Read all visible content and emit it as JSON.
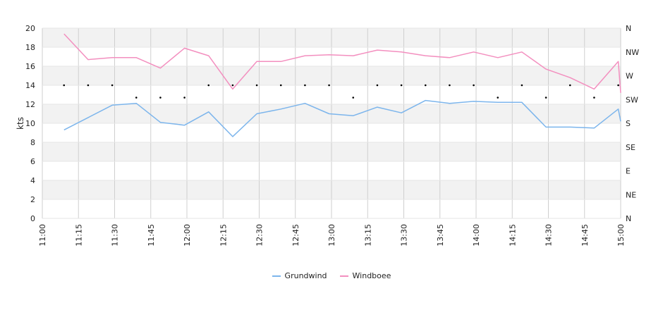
{
  "chart_data": {
    "type": "line",
    "ylabel": "kts",
    "ylim": [
      0,
      20
    ],
    "yticks": [
      "0",
      "2",
      "4",
      "6",
      "8",
      "10",
      "12",
      "14",
      "16",
      "18",
      "20"
    ],
    "y2_ticks": [
      "N",
      "NE",
      "E",
      "SE",
      "S",
      "SW",
      "W",
      "NW",
      "N"
    ],
    "x_ticks": [
      "11:00",
      "11:15",
      "11:30",
      "11:45",
      "12:00",
      "12:15",
      "12:30",
      "12:45",
      "13:00",
      "13:15",
      "13:30",
      "13:45",
      "14:00",
      "14:15",
      "14:30",
      "14:45",
      "15:00"
    ],
    "x_range_minutes": [
      0,
      240
    ],
    "legend_position": "bottom",
    "grid": true,
    "series": [
      {
        "name": "Grundwind",
        "color": "#7cb5ec",
        "x": [
          9,
          19,
          29,
          39,
          49,
          59,
          69,
          79,
          89,
          99,
          109,
          119,
          129,
          139,
          149,
          159,
          169,
          179,
          189,
          199,
          209,
          219,
          229,
          239,
          240
        ],
        "values": [
          9.3,
          10.6,
          11.9,
          12.1,
          10.1,
          9.8,
          11.2,
          8.6,
          11.0,
          11.5,
          12.1,
          11.0,
          10.8,
          11.7,
          11.1,
          12.4,
          12.1,
          12.3,
          12.2,
          12.2,
          9.6,
          9.6,
          9.5,
          11.5,
          10.2
        ]
      },
      {
        "name": "Windboee",
        "color": "#f38fbf",
        "x": [
          9,
          19,
          29,
          39,
          49,
          59,
          69,
          79,
          89,
          99,
          109,
          119,
          129,
          139,
          149,
          159,
          169,
          179,
          189,
          199,
          209,
          219,
          229,
          239,
          240
        ],
        "values": [
          19.4,
          16.7,
          16.9,
          16.9,
          15.8,
          17.9,
          17.1,
          13.6,
          16.5,
          16.5,
          17.1,
          17.2,
          17.1,
          17.7,
          17.5,
          17.1,
          16.9,
          17.5,
          16.9,
          17.5,
          15.7,
          14.8,
          13.6,
          16.5,
          13.2
        ]
      }
    ],
    "direction_series": {
      "color": "#000000",
      "x": [
        9,
        19,
        29,
        39,
        49,
        59,
        69,
        79,
        89,
        99,
        109,
        119,
        129,
        139,
        149,
        159,
        169,
        179,
        189,
        199,
        209,
        219,
        229,
        239
      ],
      "values": [
        14,
        14,
        14,
        12.7,
        12.7,
        12.7,
        14,
        14,
        14,
        14,
        14,
        14,
        12.7,
        14,
        14,
        14,
        14,
        14,
        12.7,
        14,
        12.7,
        14,
        12.7,
        14
      ]
    }
  }
}
